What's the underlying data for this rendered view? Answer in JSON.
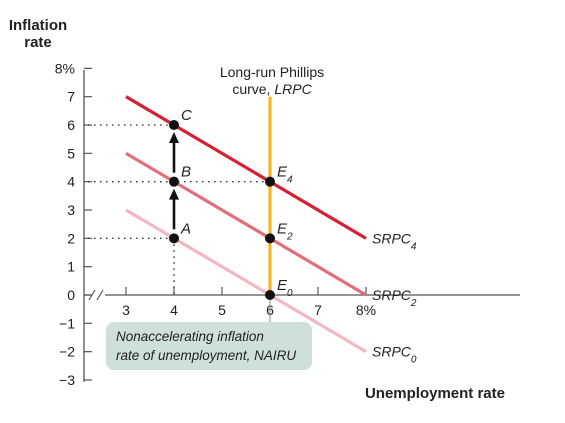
{
  "chart_data": {
    "type": "line",
    "xlabel": "Unemployment rate",
    "ylabel_line1": "Inflation",
    "ylabel_line2": "rate",
    "x_ticks": [
      {
        "value": 3,
        "label": "3"
      },
      {
        "value": 4,
        "label": "4"
      },
      {
        "value": 5,
        "label": "5"
      },
      {
        "value": 6,
        "label": "6"
      },
      {
        "value": 7,
        "label": "7"
      },
      {
        "value": 8,
        "label": "8%"
      }
    ],
    "y_ticks": [
      {
        "value": 8,
        "label": "8%"
      },
      {
        "value": 7,
        "label": "7"
      },
      {
        "value": 6,
        "label": "6"
      },
      {
        "value": 5,
        "label": "5"
      },
      {
        "value": 4,
        "label": "4"
      },
      {
        "value": 3,
        "label": "3"
      },
      {
        "value": 2,
        "label": "2"
      },
      {
        "value": 1,
        "label": "1"
      },
      {
        "value": 0,
        "label": "0"
      },
      {
        "value": -1,
        "label": "−1"
      },
      {
        "value": -2,
        "label": "−2"
      },
      {
        "value": -3,
        "label": "−3"
      }
    ],
    "xlim": [
      2.1,
      8.8
    ],
    "ylim": [
      -3,
      8
    ],
    "series": [
      {
        "name": "SRPC",
        "subscript": "0",
        "color": "#f2b7c2",
        "x": [
          3,
          8
        ],
        "y": [
          3,
          -2
        ]
      },
      {
        "name": "SRPC",
        "subscript": "2",
        "color": "#e06f7a",
        "x": [
          3,
          8
        ],
        "y": [
          5,
          0
        ]
      },
      {
        "name": "SRPC",
        "subscript": "4",
        "color": "#d81f32",
        "x": [
          3,
          8
        ],
        "y": [
          7,
          2
        ]
      }
    ],
    "lrpc": {
      "x": 6,
      "y_top": 7,
      "y_bottom": 0,
      "color": "#f6b51f",
      "label_line1": "Long-run Phillips",
      "label_line2_prefix": "curve, ",
      "label_line2_italic": "LRPC"
    },
    "points": [
      {
        "label": "A",
        "subscript": "",
        "x": 4,
        "y": 2
      },
      {
        "label": "B",
        "subscript": "",
        "x": 4,
        "y": 4
      },
      {
        "label": "C",
        "subscript": "",
        "x": 4,
        "y": 6
      },
      {
        "label": "E",
        "subscript": "0",
        "x": 6,
        "y": 0
      },
      {
        "label": "E",
        "subscript": "2",
        "x": 6,
        "y": 2
      },
      {
        "label": "E",
        "subscript": "4",
        "x": 6,
        "y": 4
      }
    ],
    "guides": [
      {
        "x": 4,
        "y": 6
      },
      {
        "x": 4,
        "y": 4
      },
      {
        "x": 4,
        "y": 2
      },
      {
        "x": 6,
        "y": 4
      }
    ],
    "arrows": [
      {
        "x": 4,
        "from": 2,
        "to": 4
      },
      {
        "x": 4,
        "from": 4,
        "to": 6
      }
    ],
    "nairu_note": {
      "line1": "Nonaccelerating inflation",
      "line2": "rate of unemployment, NAIRU",
      "color": "#cfe0dc"
    },
    "colors": {
      "axis": "#555555",
      "guide": "#333333",
      "point": "#111111"
    }
  }
}
